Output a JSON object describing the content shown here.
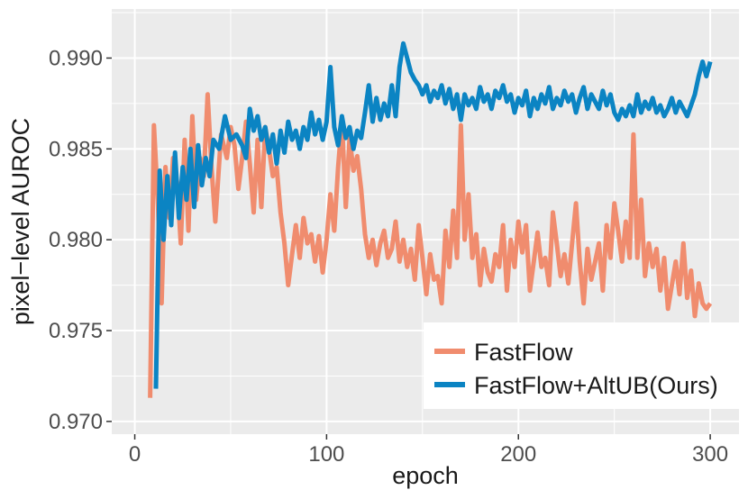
{
  "chart_data": {
    "type": "line",
    "title": "",
    "xlabel": "epoch",
    "ylabel": "pixel−level AUROC",
    "xlim": [
      -12,
      315
    ],
    "ylim": [
      0.9693,
      0.9927
    ],
    "x_ticks": [
      0,
      100,
      200,
      300
    ],
    "x_tick_labels": [
      "0",
      "100",
      "200",
      "300"
    ],
    "y_ticks": [
      0.97,
      0.975,
      0.98,
      0.985,
      0.99
    ],
    "y_tick_labels": [
      "0.970",
      "0.975",
      "0.980",
      "0.985",
      "0.990"
    ],
    "grid": true,
    "legend_position": "bottom-right",
    "series": [
      {
        "name": "FastFlow",
        "color": "#f08c6e",
        "x": [
          8,
          10,
          12,
          14,
          16,
          18,
          20,
          22,
          24,
          26,
          28,
          30,
          32,
          34,
          36,
          38,
          40,
          42,
          45,
          48,
          50,
          52,
          54,
          56,
          58,
          60,
          62,
          64,
          66,
          68,
          70,
          72,
          74,
          76,
          78,
          80,
          82,
          84,
          86,
          88,
          90,
          92,
          94,
          96,
          98,
          100,
          102,
          104,
          106,
          108,
          110,
          112,
          114,
          116,
          118,
          120,
          122,
          124,
          126,
          128,
          130,
          132,
          134,
          136,
          138,
          140,
          142,
          144,
          146,
          148,
          150,
          152,
          154,
          156,
          158,
          160,
          162,
          164,
          166,
          168,
          170,
          172,
          174,
          176,
          178,
          180,
          182,
          184,
          186,
          188,
          190,
          192,
          194,
          196,
          198,
          200,
          202,
          204,
          206,
          208,
          210,
          212,
          214,
          216,
          218,
          220,
          222,
          224,
          226,
          228,
          230,
          232,
          234,
          236,
          238,
          240,
          242,
          244,
          246,
          248,
          250,
          252,
          254,
          256,
          258,
          260,
          262,
          264,
          266,
          268,
          270,
          272,
          274,
          276,
          278,
          280,
          282,
          284,
          286,
          288,
          290,
          292,
          294,
          296,
          298,
          300
        ],
        "values": [
          0.9713,
          0.9863,
          0.9822,
          0.9765,
          0.984,
          0.9812,
          0.9845,
          0.9832,
          0.9798,
          0.9855,
          0.9805,
          0.9868,
          0.9822,
          0.9845,
          0.9835,
          0.988,
          0.984,
          0.981,
          0.9858,
          0.9845,
          0.9862,
          0.9852,
          0.9828,
          0.9845,
          0.9865,
          0.9842,
          0.9815,
          0.9855,
          0.9818,
          0.9862,
          0.985,
          0.9835,
          0.984,
          0.9815,
          0.9798,
          0.9775,
          0.9792,
          0.9808,
          0.979,
          0.9812,
          0.9798,
          0.9803,
          0.9788,
          0.9802,
          0.9782,
          0.98,
          0.9825,
          0.9805,
          0.984,
          0.9866,
          0.9818,
          0.9856,
          0.9838,
          0.9846,
          0.9828,
          0.9803,
          0.979,
          0.98,
          0.9786,
          0.9798,
          0.9805,
          0.979,
          0.9795,
          0.981,
          0.9788,
          0.98,
          0.9785,
          0.9795,
          0.9778,
          0.9808,
          0.979,
          0.977,
          0.9792,
          0.9778,
          0.978,
          0.9765,
          0.9805,
          0.9785,
          0.9816,
          0.979,
          0.9863,
          0.98,
          0.9825,
          0.979,
          0.9803,
          0.9775,
          0.9795,
          0.9782,
          0.9777,
          0.9792,
          0.9785,
          0.9808,
          0.9772,
          0.98,
          0.9785,
          0.981,
          0.9793,
          0.9808,
          0.9772,
          0.9788,
          0.9804,
          0.9785,
          0.979,
          0.9775,
          0.9815,
          0.9798,
          0.978,
          0.9792,
          0.9776,
          0.9798,
          0.982,
          0.9788,
          0.9765,
          0.9795,
          0.9778,
          0.9788,
          0.9798,
          0.9772,
          0.9808,
          0.979,
          0.982,
          0.9805,
          0.9788,
          0.981,
          0.979,
          0.9858,
          0.979,
          0.9822,
          0.978,
          0.9798,
          0.9785,
          0.9795,
          0.9772,
          0.979,
          0.9762,
          0.9775,
          0.9788,
          0.977,
          0.9798,
          0.9768,
          0.9783,
          0.9758,
          0.9776,
          0.9765,
          0.9762,
          0.9765
        ]
      },
      {
        "name": "FastFlow+AltUB(Ours)",
        "color": "#0b84c3",
        "x": [
          11,
          13,
          15,
          17,
          19,
          21,
          23,
          25,
          27,
          29,
          31,
          33,
          35,
          37,
          39,
          41,
          44,
          47,
          50,
          53,
          56,
          58,
          60,
          62,
          64,
          66,
          68,
          70,
          72,
          74,
          76,
          78,
          80,
          82,
          84,
          86,
          88,
          90,
          92,
          94,
          96,
          98,
          100,
          102,
          104,
          106,
          108,
          110,
          112,
          114,
          116,
          118,
          120,
          122,
          124,
          126,
          128,
          130,
          132,
          134,
          136,
          138,
          140,
          142,
          144,
          146,
          148,
          150,
          152,
          154,
          156,
          158,
          160,
          162,
          164,
          166,
          168,
          170,
          172,
          174,
          176,
          178,
          180,
          182,
          184,
          186,
          188,
          190,
          192,
          194,
          196,
          198,
          200,
          202,
          204,
          206,
          208,
          210,
          212,
          214,
          216,
          218,
          220,
          222,
          224,
          226,
          228,
          230,
          232,
          234,
          236,
          238,
          240,
          242,
          244,
          246,
          248,
          250,
          252,
          254,
          256,
          258,
          260,
          262,
          264,
          266,
          268,
          270,
          272,
          274,
          276,
          278,
          280,
          282,
          284,
          286,
          288,
          290,
          292,
          294,
          296,
          298,
          300
        ],
        "values": [
          0.9718,
          0.9838,
          0.98,
          0.9835,
          0.9808,
          0.9848,
          0.9812,
          0.984,
          0.9822,
          0.985,
          0.9818,
          0.9852,
          0.983,
          0.9845,
          0.9835,
          0.9855,
          0.985,
          0.9868,
          0.9855,
          0.9858,
          0.9852,
          0.9845,
          0.9872,
          0.986,
          0.9868,
          0.9855,
          0.9862,
          0.9848,
          0.9858,
          0.9842,
          0.986,
          0.9848,
          0.9865,
          0.9855,
          0.986,
          0.985,
          0.9862,
          0.9855,
          0.987,
          0.9858,
          0.9866,
          0.9855,
          0.9865,
          0.9895,
          0.9862,
          0.9852,
          0.9868,
          0.9856,
          0.9862,
          0.985,
          0.986,
          0.9856,
          0.987,
          0.9885,
          0.9865,
          0.9878,
          0.9866,
          0.9875,
          0.9868,
          0.9885,
          0.9868,
          0.9895,
          0.9908,
          0.99,
          0.9892,
          0.9888,
          0.9885,
          0.988,
          0.9885,
          0.9876,
          0.9882,
          0.9878,
          0.9885,
          0.9875,
          0.9883,
          0.9872,
          0.988,
          0.9866,
          0.988,
          0.9874,
          0.9878,
          0.9872,
          0.9884,
          0.9876,
          0.988,
          0.9872,
          0.9882,
          0.9878,
          0.9885,
          0.9876,
          0.988,
          0.987,
          0.9878,
          0.9874,
          0.9882,
          0.9868,
          0.9878,
          0.9872,
          0.988,
          0.9875,
          0.9884,
          0.9872,
          0.9878,
          0.9874,
          0.9882,
          0.9876,
          0.988,
          0.987,
          0.9878,
          0.9884,
          0.9872,
          0.988,
          0.9876,
          0.9872,
          0.9882,
          0.9874,
          0.988,
          0.987,
          0.9866,
          0.9872,
          0.9868,
          0.9874,
          0.9868,
          0.988,
          0.987,
          0.9876,
          0.9872,
          0.9878,
          0.987,
          0.9874,
          0.9868,
          0.9872,
          0.9878,
          0.987,
          0.9876,
          0.9872,
          0.9868,
          0.9874,
          0.988,
          0.989,
          0.9898,
          0.989,
          0.9898
        ]
      }
    ]
  }
}
